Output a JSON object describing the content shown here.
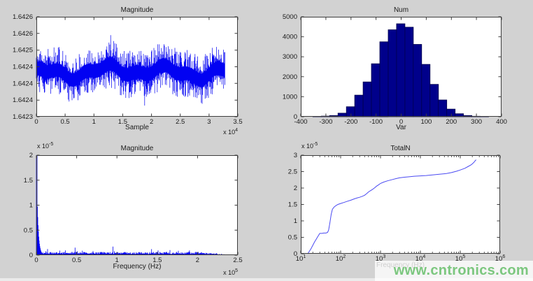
{
  "figure": {
    "bg_color": "#d2d2d2",
    "plot_bg": "#ffffff",
    "axis_color": "#3d3d3d",
    "text_color": "#1b1b1b"
  },
  "watermark": {
    "text": "www.cntronics.com",
    "color": "#7cc77f"
  },
  "chart_data": [
    {
      "id": "magnitude_time",
      "type": "line",
      "title": "Magnitude",
      "xlabel": "Sample",
      "x_mult": {
        "base": "x 10",
        "exp": "4"
      },
      "xlim": [
        0,
        35000
      ],
      "ylim": [
        1.6423,
        1.6426
      ],
      "xticks": {
        "values": [
          0,
          5000,
          10000,
          15000,
          20000,
          25000,
          30000,
          35000
        ],
        "labels": [
          "0",
          "0.5",
          "1",
          "1.5",
          "2",
          "2.5",
          "3",
          "3.5"
        ]
      },
      "yticks": {
        "values": [
          1.6423,
          1.64235,
          1.6424,
          1.64245,
          1.6425,
          1.64255,
          1.6426
        ],
        "labels": [
          "1.6423",
          "1.6424",
          "1.6424",
          "1.6424",
          "1.6425",
          "1.6426",
          "1.6426"
        ]
      },
      "series": {
        "kind": "noise",
        "n_samples": 32768,
        "x_end": 32768,
        "mean": 1.642435,
        "core_halfwidth": 3.5e-05,
        "extreme_low": 1.64232,
        "extreme_high": 1.64256,
        "seed": 11,
        "color": "#0202f2"
      }
    },
    {
      "id": "histogram",
      "type": "bar",
      "title": "Num",
      "xlabel": "Var",
      "xlim": [
        -400,
        400
      ],
      "ylim": [
        0,
        5000
      ],
      "xticks": {
        "values": [
          -400,
          -300,
          -200,
          -100,
          0,
          100,
          200,
          300,
          400
        ],
        "labels": [
          "-400",
          "-300",
          "-200",
          "-100",
          "0",
          "100",
          "200",
          "300",
          "400"
        ]
      },
      "yticks": {
        "values": [
          0,
          1000,
          2000,
          3000,
          4000,
          5000
        ],
        "labels": [
          "0",
          "1000",
          "2000",
          "3000",
          "4000",
          "5000"
        ]
      },
      "series": {
        "kind": "hist",
        "bin_start": -351.7,
        "bin_width": 33.335,
        "counts": [
          20,
          30,
          60,
          180,
          500,
          1080,
          1740,
          2650,
          3750,
          4350,
          4650,
          4480,
          3620,
          2620,
          1620,
          840,
          380,
          150,
          60,
          25,
          12
        ],
        "fill": "#00008b",
        "edge": "#00004a"
      }
    },
    {
      "id": "magnitude_spectrum",
      "type": "area",
      "title": "Magnitude",
      "xlabel": "Frequency (Hz)",
      "x_mult": {
        "base": "x 10",
        "exp": "5"
      },
      "y_mult": {
        "base": "x 10",
        "exp": "-5"
      },
      "xlim": [
        0,
        250000
      ],
      "ylim": [
        0,
        2e-05
      ],
      "xticks": {
        "values": [
          0,
          50000,
          100000,
          150000,
          200000,
          250000
        ],
        "labels": [
          "0",
          "0.5",
          "1",
          "1.5",
          "2",
          "2.5"
        ]
      },
      "yticks": {
        "values": [
          0,
          5e-06,
          1e-05,
          1.5e-05,
          2e-05
        ],
        "labels": [
          "0",
          "0.5",
          "1",
          "1.5",
          "2"
        ]
      },
      "series": {
        "kind": "spectrum",
        "dc_peak": 2e-05,
        "dc_decay": 1800,
        "noise_floor": 4e-07,
        "taper_start": 205000,
        "cutoff": 230000,
        "end": 245000,
        "spikes": [
          [
            48000,
            1.5e-06
          ],
          [
            57000,
            9e-07
          ],
          [
            80000,
            6.5e-07
          ],
          [
            95000,
            1.7e-06
          ],
          [
            110000,
            6e-07
          ],
          [
            128000,
            5e-07
          ],
          [
            143000,
            1.2e-06
          ],
          [
            162000,
            6.5e-07
          ],
          [
            190000,
            9.5e-07
          ],
          [
            205000,
            6e-07
          ]
        ],
        "seed": 5,
        "color": "#0202f2"
      }
    },
    {
      "id": "totaln",
      "type": "line",
      "title": "TotalN",
      "xlabel": "Frequency (Hz)",
      "y_mult": {
        "base": "x 10",
        "exp": "-5"
      },
      "xscale": "log",
      "xlim": [
        10,
        1000000
      ],
      "ylim": [
        0,
        3e-05
      ],
      "xticks": {
        "values": [
          10,
          100,
          1000,
          10000,
          100000,
          1000000
        ],
        "labels": [
          "1",
          "2",
          "3",
          "4",
          "5",
          "6"
        ],
        "exp_labels": true
      },
      "yticks": {
        "values": [
          0,
          5e-06,
          1e-05,
          1.5e-05,
          2e-05,
          2.5e-05,
          3e-05
        ],
        "labels": [
          "0",
          "0.5",
          "1",
          "1.5",
          "2",
          "2.5",
          "3"
        ]
      },
      "series": {
        "kind": "line",
        "y_unit": 1e-05,
        "color": "#4a4af2",
        "points": [
          [
            15,
            0
          ],
          [
            18,
            0.15
          ],
          [
            22,
            0.35
          ],
          [
            26,
            0.5
          ],
          [
            30,
            0.62
          ],
          [
            34,
            0.62
          ],
          [
            38,
            0.63
          ],
          [
            43,
            0.63
          ],
          [
            47,
            0.65
          ],
          [
            50,
            0.72
          ],
          [
            54,
            0.95
          ],
          [
            58,
            1.2
          ],
          [
            62,
            1.35
          ],
          [
            68,
            1.42
          ],
          [
            75,
            1.46
          ],
          [
            85,
            1.5
          ],
          [
            100,
            1.53
          ],
          [
            120,
            1.56
          ],
          [
            150,
            1.6
          ],
          [
            180,
            1.63
          ],
          [
            220,
            1.67
          ],
          [
            260,
            1.7
          ],
          [
            300,
            1.72
          ],
          [
            350,
            1.75
          ],
          [
            400,
            1.78
          ],
          [
            450,
            1.83
          ],
          [
            500,
            1.88
          ],
          [
            560,
            1.92
          ],
          [
            630,
            1.96
          ],
          [
            700,
            2.0
          ],
          [
            800,
            2.06
          ],
          [
            900,
            2.1
          ],
          [
            1000,
            2.14
          ],
          [
            1200,
            2.18
          ],
          [
            1500,
            2.22
          ],
          [
            2000,
            2.26
          ],
          [
            2500,
            2.29
          ],
          [
            3000,
            2.31
          ],
          [
            4000,
            2.33
          ],
          [
            5000,
            2.34
          ],
          [
            7000,
            2.36
          ],
          [
            10000,
            2.37
          ],
          [
            14000,
            2.38
          ],
          [
            20000,
            2.4
          ],
          [
            30000,
            2.42
          ],
          [
            45000,
            2.44
          ],
          [
            60000,
            2.47
          ],
          [
            80000,
            2.51
          ],
          [
            100000,
            2.55
          ],
          [
            130000,
            2.6
          ],
          [
            160000,
            2.66
          ],
          [
            190000,
            2.71
          ],
          [
            220000,
            2.78
          ],
          [
            240000,
            2.84
          ],
          [
            250000,
            2.86
          ]
        ]
      }
    }
  ]
}
